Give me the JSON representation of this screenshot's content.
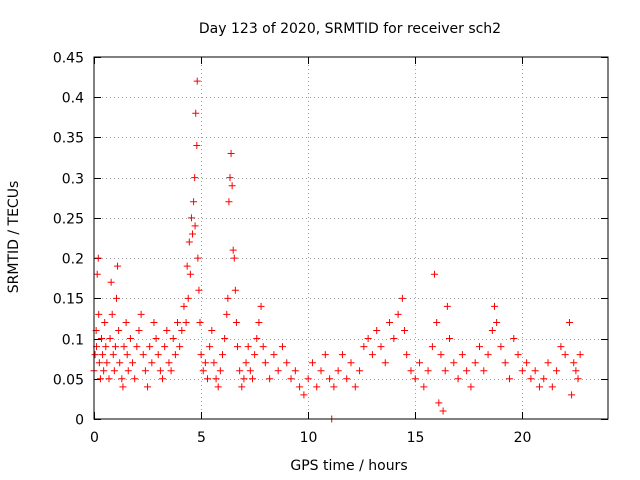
{
  "chart_data": {
    "type": "scatter",
    "title": "Day 123 of 2020, SRMTID for receiver sch2",
    "xlabel": "GPS time / hours",
    "ylabel": "SRMTID / TECUs",
    "xlim": [
      0,
      24
    ],
    "ylim": [
      0,
      0.45
    ],
    "xticks": [
      0,
      5,
      10,
      15,
      20
    ],
    "xtick_labels": [
      "0",
      "5",
      "10",
      "15",
      "20"
    ],
    "yticks": [
      0,
      0.05,
      0.1,
      0.15,
      0.2,
      0.25,
      0.3,
      0.35,
      0.4,
      0.45
    ],
    "ytick_labels": [
      "0",
      "0.05",
      "0.1",
      "0.15",
      "0.2",
      "0.25",
      "0.3",
      "0.35",
      "0.4",
      "0.45"
    ],
    "grid": true,
    "marker": "+",
    "color": "#ff0000",
    "series": [
      {
        "name": "SRMTID",
        "points": [
          [
            0.0,
            0.06
          ],
          [
            0.05,
            0.08
          ],
          [
            0.1,
            0.11
          ],
          [
            0.12,
            0.09
          ],
          [
            0.15,
            0.18
          ],
          [
            0.2,
            0.2
          ],
          [
            0.22,
            0.13
          ],
          [
            0.25,
            0.07
          ],
          [
            0.3,
            0.05
          ],
          [
            0.35,
            0.1
          ],
          [
            0.4,
            0.08
          ],
          [
            0.45,
            0.06
          ],
          [
            0.5,
            0.12
          ],
          [
            0.55,
            0.09
          ],
          [
            0.6,
            0.07
          ],
          [
            0.7,
            0.05
          ],
          [
            0.75,
            0.1
          ],
          [
            0.8,
            0.17
          ],
          [
            0.85,
            0.13
          ],
          [
            0.9,
            0.08
          ],
          [
            0.95,
            0.06
          ],
          [
            1.0,
            0.09
          ],
          [
            1.05,
            0.15
          ],
          [
            1.1,
            0.19
          ],
          [
            1.15,
            0.11
          ],
          [
            1.2,
            0.07
          ],
          [
            1.3,
            0.05
          ],
          [
            1.35,
            0.04
          ],
          [
            1.4,
            0.09
          ],
          [
            1.5,
            0.12
          ],
          [
            1.55,
            0.08
          ],
          [
            1.6,
            0.06
          ],
          [
            1.7,
            0.1
          ],
          [
            1.8,
            0.07
          ],
          [
            1.9,
            0.05
          ],
          [
            2.0,
            0.09
          ],
          [
            2.1,
            0.11
          ],
          [
            2.2,
            0.13
          ],
          [
            2.3,
            0.08
          ],
          [
            2.4,
            0.06
          ],
          [
            2.5,
            0.04
          ],
          [
            2.6,
            0.09
          ],
          [
            2.7,
            0.07
          ],
          [
            2.8,
            0.12
          ],
          [
            2.9,
            0.1
          ],
          [
            3.0,
            0.08
          ],
          [
            3.1,
            0.06
          ],
          [
            3.2,
            0.05
          ],
          [
            3.3,
            0.09
          ],
          [
            3.4,
            0.11
          ],
          [
            3.5,
            0.07
          ],
          [
            3.6,
            0.06
          ],
          [
            3.7,
            0.1
          ],
          [
            3.8,
            0.08
          ],
          [
            3.9,
            0.12
          ],
          [
            4.0,
            0.09
          ],
          [
            4.1,
            0.11
          ],
          [
            4.2,
            0.14
          ],
          [
            4.3,
            0.12
          ],
          [
            4.35,
            0.19
          ],
          [
            4.4,
            0.15
          ],
          [
            4.45,
            0.22
          ],
          [
            4.5,
            0.18
          ],
          [
            4.55,
            0.25
          ],
          [
            4.6,
            0.23
          ],
          [
            4.65,
            0.27
          ],
          [
            4.7,
            0.3
          ],
          [
            4.72,
            0.24
          ],
          [
            4.75,
            0.38
          ],
          [
            4.8,
            0.34
          ],
          [
            4.82,
            0.42
          ],
          [
            4.85,
            0.2
          ],
          [
            4.9,
            0.16
          ],
          [
            4.95,
            0.12
          ],
          [
            5.0,
            0.08
          ],
          [
            5.1,
            0.06
          ],
          [
            5.2,
            0.07
          ],
          [
            5.3,
            0.05
          ],
          [
            5.4,
            0.09
          ],
          [
            5.5,
            0.11
          ],
          [
            5.6,
            0.07
          ],
          [
            5.7,
            0.05
          ],
          [
            5.8,
            0.04
          ],
          [
            5.9,
            0.06
          ],
          [
            6.0,
            0.08
          ],
          [
            6.1,
            0.1
          ],
          [
            6.2,
            0.13
          ],
          [
            6.25,
            0.15
          ],
          [
            6.3,
            0.27
          ],
          [
            6.35,
            0.3
          ],
          [
            6.4,
            0.33
          ],
          [
            6.45,
            0.29
          ],
          [
            6.5,
            0.21
          ],
          [
            6.55,
            0.2
          ],
          [
            6.6,
            0.16
          ],
          [
            6.65,
            0.12
          ],
          [
            6.7,
            0.09
          ],
          [
            6.8,
            0.06
          ],
          [
            6.9,
            0.04
          ],
          [
            7.0,
            0.05
          ],
          [
            7.1,
            0.07
          ],
          [
            7.2,
            0.09
          ],
          [
            7.3,
            0.06
          ],
          [
            7.4,
            0.05
          ],
          [
            7.5,
            0.08
          ],
          [
            7.6,
            0.1
          ],
          [
            7.7,
            0.12
          ],
          [
            7.8,
            0.14
          ],
          [
            7.9,
            0.09
          ],
          [
            8.0,
            0.07
          ],
          [
            8.2,
            0.05
          ],
          [
            8.4,
            0.08
          ],
          [
            8.6,
            0.06
          ],
          [
            8.8,
            0.09
          ],
          [
            9.0,
            0.07
          ],
          [
            9.2,
            0.05
          ],
          [
            9.4,
            0.06
          ],
          [
            9.6,
            0.04
          ],
          [
            9.8,
            0.03
          ],
          [
            10.0,
            0.05
          ],
          [
            10.2,
            0.07
          ],
          [
            10.4,
            0.04
          ],
          [
            10.6,
            0.06
          ],
          [
            10.8,
            0.08
          ],
          [
            11.0,
            0.05
          ],
          [
            11.1,
            0.0
          ],
          [
            11.2,
            0.04
          ],
          [
            11.4,
            0.06
          ],
          [
            11.6,
            0.08
          ],
          [
            11.8,
            0.05
          ],
          [
            12.0,
            0.07
          ],
          [
            12.2,
            0.04
          ],
          [
            12.4,
            0.06
          ],
          [
            12.6,
            0.09
          ],
          [
            12.8,
            0.1
          ],
          [
            13.0,
            0.08
          ],
          [
            13.2,
            0.11
          ],
          [
            13.4,
            0.09
          ],
          [
            13.6,
            0.07
          ],
          [
            13.8,
            0.12
          ],
          [
            14.0,
            0.1
          ],
          [
            14.2,
            0.13
          ],
          [
            14.4,
            0.15
          ],
          [
            14.5,
            0.11
          ],
          [
            14.6,
            0.08
          ],
          [
            14.8,
            0.06
          ],
          [
            15.0,
            0.05
          ],
          [
            15.2,
            0.07
          ],
          [
            15.4,
            0.04
          ],
          [
            15.6,
            0.06
          ],
          [
            15.8,
            0.09
          ],
          [
            15.9,
            0.18
          ],
          [
            16.0,
            0.12
          ],
          [
            16.1,
            0.02
          ],
          [
            16.2,
            0.08
          ],
          [
            16.3,
            0.01
          ],
          [
            16.4,
            0.06
          ],
          [
            16.5,
            0.14
          ],
          [
            16.6,
            0.1
          ],
          [
            16.8,
            0.07
          ],
          [
            17.0,
            0.05
          ],
          [
            17.2,
            0.08
          ],
          [
            17.4,
            0.06
          ],
          [
            17.6,
            0.04
          ],
          [
            17.8,
            0.07
          ],
          [
            18.0,
            0.09
          ],
          [
            18.2,
            0.06
          ],
          [
            18.4,
            0.08
          ],
          [
            18.6,
            0.11
          ],
          [
            18.7,
            0.14
          ],
          [
            18.8,
            0.12
          ],
          [
            19.0,
            0.09
          ],
          [
            19.2,
            0.07
          ],
          [
            19.4,
            0.05
          ],
          [
            19.6,
            0.1
          ],
          [
            19.8,
            0.08
          ],
          [
            20.0,
            0.06
          ],
          [
            20.2,
            0.07
          ],
          [
            20.4,
            0.05
          ],
          [
            20.6,
            0.06
          ],
          [
            20.8,
            0.04
          ],
          [
            21.0,
            0.05
          ],
          [
            21.2,
            0.07
          ],
          [
            21.4,
            0.04
          ],
          [
            21.6,
            0.06
          ],
          [
            21.8,
            0.09
          ],
          [
            22.0,
            0.08
          ],
          [
            22.2,
            0.12
          ],
          [
            22.3,
            0.03
          ],
          [
            22.4,
            0.07
          ],
          [
            22.5,
            0.06
          ],
          [
            22.6,
            0.05
          ],
          [
            22.7,
            0.08
          ]
        ]
      }
    ]
  }
}
